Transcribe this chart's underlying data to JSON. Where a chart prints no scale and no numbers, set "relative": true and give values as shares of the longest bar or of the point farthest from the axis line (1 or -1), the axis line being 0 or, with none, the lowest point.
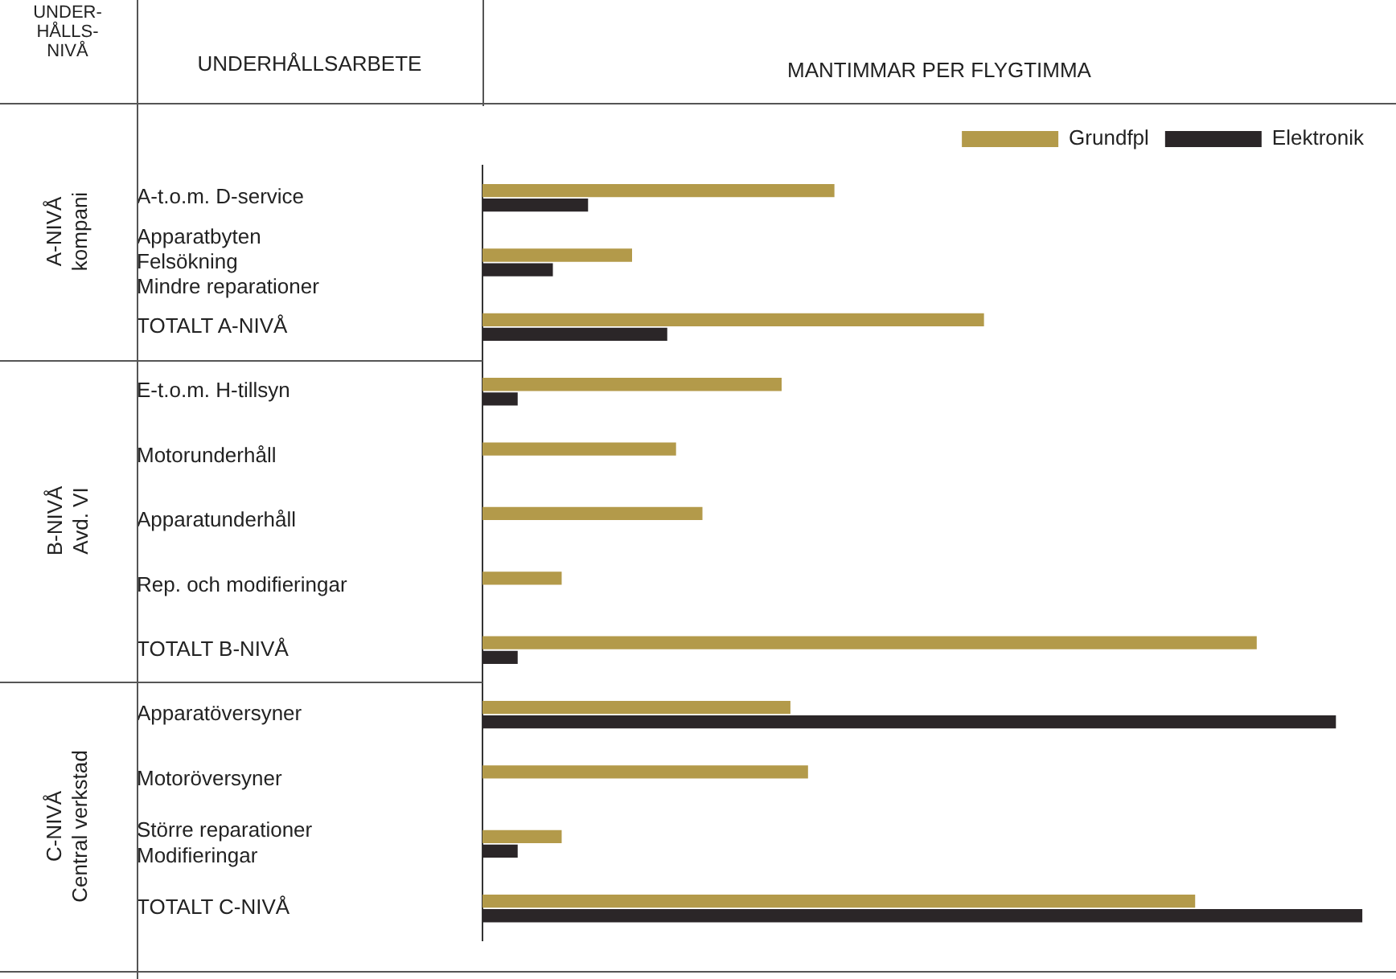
{
  "chart_data": {
    "type": "bar",
    "orientation": "horizontal",
    "relative": true,
    "title": "MANTIMMAR PER FLYGTIMMA",
    "categories": [
      "A-t.o.m. D-service",
      "Apparatbyten\nFelsökning\nMindre reparationer",
      "TOTALT A-NIVÅ",
      "E-t.o.m. H-tillsyn",
      "Motorunderhåll",
      "Apparatunderhåll",
      "Rep. och modifieringar",
      "TOTALT B-NIVÅ",
      "Apparatöversyner",
      "Motoröversyner",
      "Större reparationer\nModifieringar",
      "TOTALT C-NIVÅ"
    ],
    "series": [
      {
        "name": "Grundfpl",
        "color": "#b39a4a",
        "values": [
          0.4,
          0.17,
          0.57,
          0.34,
          0.22,
          0.25,
          0.09,
          0.88,
          0.35,
          0.37,
          0.09,
          0.81
        ]
      },
      {
        "name": "Elektronik",
        "color": "#2b2628",
        "values": [
          0.12,
          0.08,
          0.21,
          0.04,
          null,
          null,
          null,
          0.04,
          0.97,
          null,
          0.04,
          1
        ]
      }
    ],
    "annotations": [
      "UNDER-\nHÅLLS-\nNIVÅ",
      "UNDERHÅLLSARBETE",
      "A-NIVÅ\nkompani",
      "B-NIVÅ\nAvd. VI",
      "C-NIVÅ\nCentral verkstad"
    ],
    "legend": "top right"
  }
}
